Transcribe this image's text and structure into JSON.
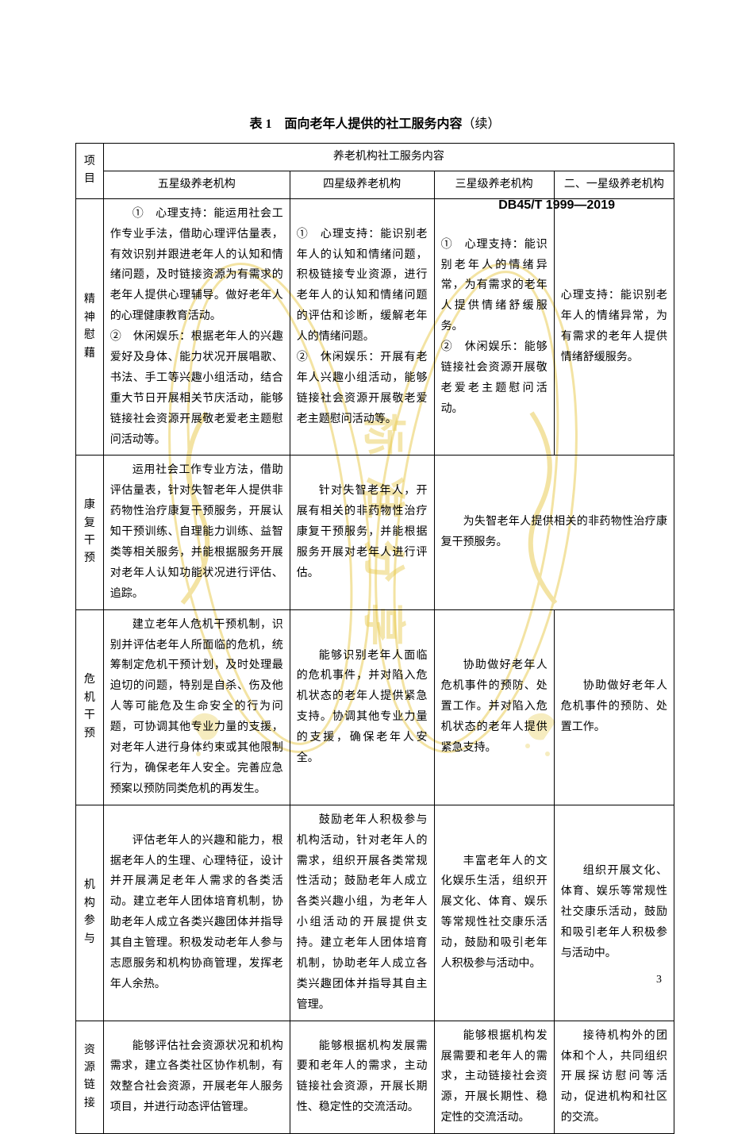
{
  "doc_code": "DB45/T 1999—2019",
  "caption_main": "表 1　面向老年人提供的社工服务内容",
  "caption_suffix": "（续）",
  "header": {
    "cat": "项目",
    "group": "养老机构社工服务内容",
    "c5": "五星级养老机构",
    "c4": "四星级养老机构",
    "c3": "三星级养老机构",
    "c1": "二、一星级养老机构"
  },
  "rows": {
    "r1": {
      "cat": "精神慰藉",
      "c5": "①　心理支持：能运用社会工作专业手法，借助心理评估量表，有效识别并跟进老年人的认知和情绪问题，及时链接资源为有需求的老年人提供心理辅导。做好老年人的心理健康教育活动。\n②　休闲娱乐：根据老年人的兴趣爱好及身体、能力状况开展唱歌、书法、手工等兴趣小组活动，结合重大节日开展相关节庆活动，能够链接社会资源开展敬老爱老主题慰问活动等。",
      "c4": "①　心理支持：能识别老年人的认知和情绪问题，积极链接专业资源，进行老年人的认知和情绪问题的评估和诊断，缓解老年人的情绪问题。\n②　休闲娱乐：开展有老年人兴趣小组活动，能够链接社会资源开展敬老爱老主题慰问活动等。",
      "c3": "①　心理支持：能识别老年人的情绪异常，为有需求的老年人提供情绪舒缓服务。\n②　休闲娱乐：能够链接社会资源开展敬老爱老主题慰问活动。",
      "c1": "心理支持：能识别老年人的情绪异常，为有需求的老年人提供情绪舒缓服务。"
    },
    "r2": {
      "cat": "康复干预",
      "c5": "运用社会工作专业方法，借助评估量表，针对失智老年人提供非药物性治疗康复干预服务，开展认知干预训练、自理能力训练、益智类等相关服务，并能根据服务开展对老年人认知功能状况进行评估、追踪。",
      "c4": "针对失智老年人，开展有相关的非药物性治疗康复干预服务，并能根据服务开展对老年人进行评估。",
      "c3span": "为失智老年人提供相关的非药物性治疗康复干预服务。"
    },
    "r3": {
      "cat": "危机干预",
      "c5": "建立老年人危机干预机制，识别并评估老年人所面临的危机，统筹制定危机干预计划，及时处理最迫切的问题，特别是自杀、伤及他人等可能危及生命安全的行为问题，可协调其他专业力量的支援，对老年人进行身体约束或其他限制行为，确保老年人安全。完善应急预案以预防同类危机的再发生。",
      "c4": "能够识别老年人面临的危机事件，并对陷入危机状态的老年人提供紧急支持。协调其他专业力量的支援，确保老年人安全。",
      "c3": "协助做好老年人危机事件的预防、处置工作。并对陷入危机状态的老年人提供紧急支持。",
      "c1": "协助做好老年人危机事件的预防、处置工作。"
    },
    "r4": {
      "cat": "机构参与",
      "c5": "评估老年人的兴趣和能力，根据老年人的生理、心理特征，设计并开展满足老年人需求的各类活动。建立老年人团体培育机制，协助老年人成立各类兴趣团体并指导其自主管理。积极发动老年人参与志愿服务和机构协商管理，发挥老年人余热。",
      "c4": "鼓励老年人积极参与机构活动，针对老年人的需求，组织开展各类常规性活动；鼓励老年人成立各类兴趣小组，为老年人小组活动的开展提供支持。建立老年人团体培育机制，协助老年人成立各类兴趣团体并指导其自主管理。",
      "c3": "丰富老年人的文化娱乐生活，组织开展文化、体育、娱乐等常规性社交康乐活动，鼓励和吸引老年人积极参与活动中。",
      "c1": "组织开展文化、体育、娱乐等常规性社交康乐活动，鼓励和吸引老年人积极参与活动中。"
    },
    "r5": {
      "cat": "资源链接",
      "c5": "能够评估社会资源状况和机构需求，建立各类社区协作机制，有效整合社会资源，开展老年人服务项目，并进行动态评估管理。",
      "c4": "能够根据机构发展需要和老年人的需求，主动链接社会资源，开展长期性、稳定性的交流活动。",
      "c3": "能够根据机构发展需要和老年人的需求，主动链接社会资源，开展长期性、稳定性的交流活动。",
      "c1": "接待机构外的团体和个人，共同组织开展探访慰问等活动，促进机构和社区的交流。"
    }
  },
  "page_num": "3",
  "style": {
    "wm_color": "#e8c94a",
    "wm_opacity": 0.55,
    "border": "#000000",
    "text": "#000000",
    "fontsize": 14,
    "lineheight": 1.85
  }
}
